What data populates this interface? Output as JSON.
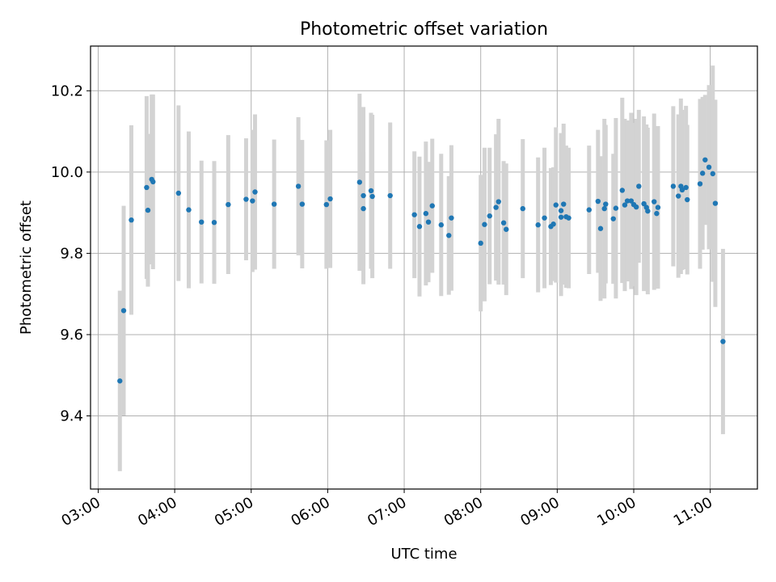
{
  "chart_data": {
    "type": "scatter",
    "title": "Photometric offset variation",
    "xlabel": "UTC time",
    "ylabel": "Photometric offset",
    "xlim": [
      "02:54",
      "11:37"
    ],
    "ylim": [
      9.22,
      10.31
    ],
    "xticks": [
      "03:00",
      "04:00",
      "05:00",
      "06:00",
      "07:00",
      "08:00",
      "09:00",
      "10:00",
      "11:00"
    ],
    "yticks": [
      9.4,
      9.6,
      9.8,
      10.0,
      10.2
    ],
    "grid": true,
    "colors": {
      "points": "#1f77b4",
      "errorbars": "#d3d3d3",
      "grid": "#b0b0b0"
    },
    "series": [
      {
        "points": [
          {
            "t": "03:17",
            "y": 9.486,
            "err": 0.222
          },
          {
            "t": "03:20",
            "y": 9.659,
            "err": 0.258
          },
          {
            "t": "03:26",
            "y": 9.882,
            "err": 0.233
          },
          {
            "t": "03:38",
            "y": 9.962,
            "err": 0.225
          },
          {
            "t": "03:39",
            "y": 9.906,
            "err": 0.188
          },
          {
            "t": "03:42",
            "y": 9.982,
            "err": 0.209
          },
          {
            "t": "03:43",
            "y": 9.976,
            "err": 0.215
          },
          {
            "t": "04:03",
            "y": 9.948,
            "err": 0.216
          },
          {
            "t": "04:11",
            "y": 9.907,
            "err": 0.193
          },
          {
            "t": "04:21",
            "y": 9.877,
            "err": 0.151
          },
          {
            "t": "04:31",
            "y": 9.876,
            "err": 0.151
          },
          {
            "t": "04:42",
            "y": 9.92,
            "err": 0.171
          },
          {
            "t": "04:56",
            "y": 9.933,
            "err": 0.15
          },
          {
            "t": "05:01",
            "y": 9.929,
            "err": 0.175
          },
          {
            "t": "05:03",
            "y": 9.951,
            "err": 0.191
          },
          {
            "t": "05:18",
            "y": 9.921,
            "err": 0.159
          },
          {
            "t": "05:37",
            "y": 9.965,
            "err": 0.17
          },
          {
            "t": "05:40",
            "y": 9.921,
            "err": 0.158
          },
          {
            "t": "05:59",
            "y": 9.92,
            "err": 0.158
          },
          {
            "t": "06:02",
            "y": 9.934,
            "err": 0.17
          },
          {
            "t": "06:25",
            "y": 9.975,
            "err": 0.218
          },
          {
            "t": "06:28",
            "y": 9.91,
            "err": 0.14
          },
          {
            "t": "06:28",
            "y": 9.942,
            "err": 0.218
          },
          {
            "t": "06:34",
            "y": 9.954,
            "err": 0.192
          },
          {
            "t": "06:35",
            "y": 9.94,
            "err": 0.201
          },
          {
            "t": "06:49",
            "y": 9.942,
            "err": 0.18
          },
          {
            "t": "07:08",
            "y": 9.895,
            "err": 0.156
          },
          {
            "t": "07:12",
            "y": 9.866,
            "err": 0.172
          },
          {
            "t": "07:17",
            "y": 9.898,
            "err": 0.177
          },
          {
            "t": "07:19",
            "y": 9.877,
            "err": 0.148
          },
          {
            "t": "07:22",
            "y": 9.917,
            "err": 0.165
          },
          {
            "t": "07:29",
            "y": 9.87,
            "err": 0.175
          },
          {
            "t": "07:35",
            "y": 9.844,
            "err": 0.146
          },
          {
            "t": "07:37",
            "y": 9.887,
            "err": 0.179
          },
          {
            "t": "08:00",
            "y": 9.825,
            "err": 0.168
          },
          {
            "t": "08:03",
            "y": 9.871,
            "err": 0.189
          },
          {
            "t": "08:07",
            "y": 9.892,
            "err": 0.168
          },
          {
            "t": "08:12",
            "y": 9.913,
            "err": 0.18
          },
          {
            "t": "08:14",
            "y": 9.927,
            "err": 0.204
          },
          {
            "t": "08:18",
            "y": 9.875,
            "err": 0.152
          },
          {
            "t": "08:20",
            "y": 9.859,
            "err": 0.162
          },
          {
            "t": "08:33",
            "y": 9.91,
            "err": 0.171
          },
          {
            "t": "08:45",
            "y": 9.87,
            "err": 0.166
          },
          {
            "t": "08:50",
            "y": 9.887,
            "err": 0.173
          },
          {
            "t": "08:55",
            "y": 9.866,
            "err": 0.144
          },
          {
            "t": "08:57",
            "y": 9.872,
            "err": 0.14
          },
          {
            "t": "08:59",
            "y": 9.919,
            "err": 0.191
          },
          {
            "t": "09:03",
            "y": 9.905,
            "err": 0.191
          },
          {
            "t": "09:03",
            "y": 9.889,
            "err": 0.194
          },
          {
            "t": "09:05",
            "y": 9.921,
            "err": 0.198
          },
          {
            "t": "09:07",
            "y": 9.89,
            "err": 0.175
          },
          {
            "t": "09:09",
            "y": 9.887,
            "err": 0.173
          },
          {
            "t": "09:25",
            "y": 9.907,
            "err": 0.158
          },
          {
            "t": "09:32",
            "y": 9.928,
            "err": 0.176
          },
          {
            "t": "09:34",
            "y": 9.861,
            "err": 0.178
          },
          {
            "t": "09:37",
            "y": 9.91,
            "err": 0.221
          },
          {
            "t": "09:38",
            "y": 9.921,
            "err": 0.195
          },
          {
            "t": "09:44",
            "y": 9.885,
            "err": 0.16
          },
          {
            "t": "09:46",
            "y": 9.911,
            "err": 0.222
          },
          {
            "t": "09:51",
            "y": 9.955,
            "err": 0.228
          },
          {
            "t": "09:53",
            "y": 9.919,
            "err": 0.212
          },
          {
            "t": "09:55",
            "y": 9.929,
            "err": 0.198
          },
          {
            "t": "09:58",
            "y": 9.929,
            "err": 0.217
          },
          {
            "t": "10:00",
            "y": 9.92,
            "err": 0.201
          },
          {
            "t": "10:02",
            "y": 9.914,
            "err": 0.217
          },
          {
            "t": "10:04",
            "y": 9.965,
            "err": 0.188
          },
          {
            "t": "10:08",
            "y": 9.922,
            "err": 0.215
          },
          {
            "t": "10:10",
            "y": 9.913,
            "err": 0.204
          },
          {
            "t": "10:11",
            "y": 9.904,
            "err": 0.205
          },
          {
            "t": "10:16",
            "y": 9.927,
            "err": 0.217
          },
          {
            "t": "10:18",
            "y": 9.898,
            "err": 0.174
          },
          {
            "t": "10:19",
            "y": 9.913,
            "err": 0.2
          },
          {
            "t": "10:31",
            "y": 9.965,
            "err": 0.197
          },
          {
            "t": "10:35",
            "y": 9.941,
            "err": 0.201
          },
          {
            "t": "10:37",
            "y": 9.965,
            "err": 0.216
          },
          {
            "t": "10:38",
            "y": 9.956,
            "err": 0.197
          },
          {
            "t": "10:41",
            "y": 9.962,
            "err": 0.201
          },
          {
            "t": "10:42",
            "y": 9.932,
            "err": 0.184
          },
          {
            "t": "10:52",
            "y": 9.971,
            "err": 0.209
          },
          {
            "t": "10:54",
            "y": 9.997,
            "err": 0.188
          },
          {
            "t": "10:56",
            "y": 10.03,
            "err": 0.16
          },
          {
            "t": "10:59",
            "y": 10.012,
            "err": 0.202
          },
          {
            "t": "11:02",
            "y": 9.996,
            "err": 0.266
          },
          {
            "t": "11:04",
            "y": 9.923,
            "err": 0.255
          },
          {
            "t": "11:10",
            "y": 9.583,
            "err": 0.228
          }
        ]
      }
    ]
  }
}
